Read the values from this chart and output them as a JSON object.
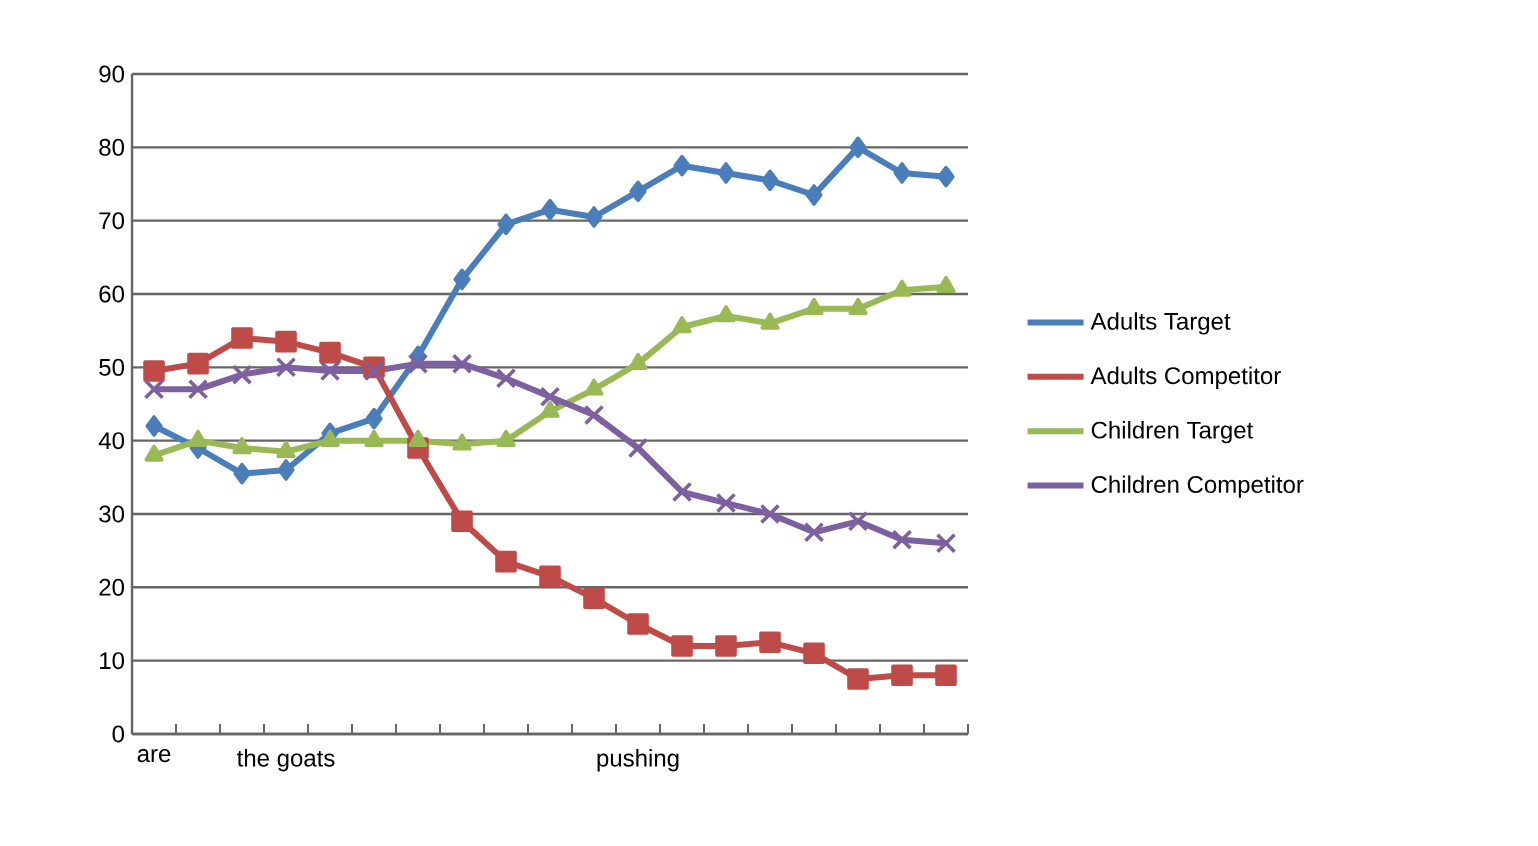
{
  "chart_data": {
    "type": "line",
    "categories": [
      "are",
      null,
      null,
      "the goats",
      null,
      null,
      null,
      null,
      null,
      null,
      null,
      "pushing",
      null,
      null,
      null,
      null,
      null,
      null,
      null
    ],
    "ylim": [
      0,
      90
    ],
    "yticks": [
      0,
      10,
      20,
      30,
      40,
      50,
      60,
      70,
      80,
      90
    ],
    "grid": "y",
    "legend": "right",
    "series": [
      {
        "name": "Adults Target",
        "color": "#4a7ebb",
        "marker": "diamond",
        "values": [
          42,
          39,
          35.5,
          36,
          41,
          43,
          51.5,
          62,
          69.5,
          71.5,
          70.5,
          74,
          77.5,
          76.5,
          75.5,
          73.5,
          80,
          76.5,
          76
        ]
      },
      {
        "name": "Adults Competitor",
        "color": "#be4b48",
        "marker": "square",
        "values": [
          49.5,
          50.5,
          54,
          53.5,
          52,
          50,
          39,
          29,
          23.5,
          21.5,
          18.5,
          15,
          12,
          12,
          12.5,
          11,
          7.5,
          8,
          8
        ]
      },
      {
        "name": "Children Target",
        "color": "#98b954",
        "marker": "triangle",
        "values": [
          38,
          40,
          39,
          38.5,
          40,
          40,
          40,
          39.5,
          40,
          44,
          47,
          50.5,
          55.5,
          57,
          56,
          58,
          58,
          60.5,
          61
        ]
      },
      {
        "name": "Children Competitor",
        "color": "#7d60a0",
        "marker": "cross",
        "values": [
          47,
          47,
          49,
          50,
          49.5,
          49.5,
          50.5,
          50.5,
          48.5,
          46,
          43.5,
          39,
          33,
          31.5,
          30,
          27.5,
          29,
          26.5,
          26
        ]
      }
    ]
  }
}
